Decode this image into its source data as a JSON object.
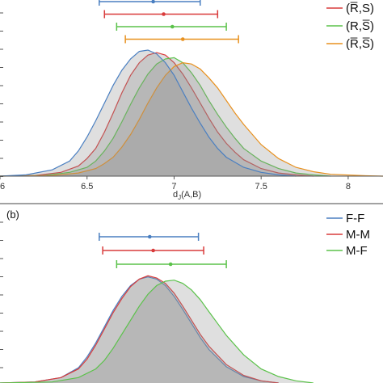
{
  "chart_data": [
    {
      "type": "area",
      "panel_label": "",
      "xlabel": "d_J(A,B)",
      "x_ticks": [
        "6",
        "6.5",
        "7",
        "7.5",
        "8"
      ],
      "xlim": [
        6.0,
        8.2
      ],
      "grid": false,
      "legend_position": "top-right",
      "series": [
        {
          "name": "(R̅,S)",
          "color": "#d93b3b",
          "interval": {
            "low": 6.6,
            "mean": 6.94,
            "high": 7.25
          },
          "density": [
            [
              6.0,
              0.0
            ],
            [
              6.2,
              0.005
            ],
            [
              6.35,
              0.03
            ],
            [
              6.45,
              0.08
            ],
            [
              6.5,
              0.14
            ],
            [
              6.55,
              0.22
            ],
            [
              6.6,
              0.35
            ],
            [
              6.65,
              0.5
            ],
            [
              6.7,
              0.66
            ],
            [
              6.75,
              0.8
            ],
            [
              6.8,
              0.9
            ],
            [
              6.85,
              0.96
            ],
            [
              6.9,
              0.98
            ],
            [
              6.95,
              0.96
            ],
            [
              7.0,
              0.9
            ],
            [
              7.05,
              0.81
            ],
            [
              7.1,
              0.7
            ],
            [
              7.15,
              0.58
            ],
            [
              7.2,
              0.46
            ],
            [
              7.25,
              0.35
            ],
            [
              7.3,
              0.26
            ],
            [
              7.35,
              0.19
            ],
            [
              7.4,
              0.13
            ],
            [
              7.5,
              0.06
            ],
            [
              7.6,
              0.025
            ],
            [
              7.7,
              0.01
            ],
            [
              7.8,
              0.0
            ]
          ]
        },
        {
          "name": "(R,S̅)",
          "color": "#5bc24a",
          "interval": {
            "low": 6.67,
            "mean": 6.99,
            "high": 7.3
          },
          "density": [
            [
              6.0,
              0.0
            ],
            [
              6.25,
              0.005
            ],
            [
              6.4,
              0.03
            ],
            [
              6.5,
              0.07
            ],
            [
              6.55,
              0.12
            ],
            [
              6.6,
              0.2
            ],
            [
              6.65,
              0.3
            ],
            [
              6.7,
              0.43
            ],
            [
              6.75,
              0.57
            ],
            [
              6.8,
              0.7
            ],
            [
              6.85,
              0.81
            ],
            [
              6.9,
              0.89
            ],
            [
              6.95,
              0.93
            ],
            [
              7.0,
              0.94
            ],
            [
              7.05,
              0.9
            ],
            [
              7.1,
              0.82
            ],
            [
              7.15,
              0.72
            ],
            [
              7.2,
              0.6
            ],
            [
              7.25,
              0.49
            ],
            [
              7.3,
              0.39
            ],
            [
              7.35,
              0.3
            ],
            [
              7.4,
              0.22
            ],
            [
              7.5,
              0.12
            ],
            [
              7.6,
              0.06
            ],
            [
              7.7,
              0.025
            ],
            [
              7.8,
              0.01
            ],
            [
              7.9,
              0.0
            ]
          ]
        },
        {
          "name": "(R̅,S̅)",
          "color": "#e8911f",
          "interval": {
            "low": 6.72,
            "mean": 7.05,
            "high": 7.37
          },
          "density": [
            [
              6.0,
              0.0
            ],
            [
              6.3,
              0.005
            ],
            [
              6.45,
              0.025
            ],
            [
              6.55,
              0.06
            ],
            [
              6.6,
              0.1
            ],
            [
              6.65,
              0.15
            ],
            [
              6.7,
              0.23
            ],
            [
              6.75,
              0.33
            ],
            [
              6.8,
              0.45
            ],
            [
              6.85,
              0.58
            ],
            [
              6.9,
              0.7
            ],
            [
              6.95,
              0.8
            ],
            [
              7.0,
              0.87
            ],
            [
              7.05,
              0.9
            ],
            [
              7.1,
              0.89
            ],
            [
              7.15,
              0.85
            ],
            [
              7.2,
              0.78
            ],
            [
              7.25,
              0.7
            ],
            [
              7.3,
              0.6
            ],
            [
              7.35,
              0.5
            ],
            [
              7.4,
              0.41
            ],
            [
              7.45,
              0.33
            ],
            [
              7.5,
              0.25
            ],
            [
              7.6,
              0.14
            ],
            [
              7.7,
              0.07
            ],
            [
              7.8,
              0.035
            ],
            [
              7.9,
              0.015
            ],
            [
              8.1,
              0.003
            ],
            [
              8.2,
              0.0
            ]
          ]
        },
        {
          "name": "",
          "color": "#4a7fc1",
          "interval": {
            "low": 6.57,
            "mean": 6.88,
            "high": 7.15
          },
          "density": [
            [
              6.0,
              0.0
            ],
            [
              6.15,
              0.01
            ],
            [
              6.3,
              0.05
            ],
            [
              6.4,
              0.12
            ],
            [
              6.45,
              0.2
            ],
            [
              6.5,
              0.31
            ],
            [
              6.55,
              0.44
            ],
            [
              6.6,
              0.58
            ],
            [
              6.65,
              0.72
            ],
            [
              6.7,
              0.84
            ],
            [
              6.75,
              0.93
            ],
            [
              6.8,
              0.99
            ],
            [
              6.85,
              1.0
            ],
            [
              6.9,
              0.97
            ],
            [
              6.95,
              0.9
            ],
            [
              7.0,
              0.8
            ],
            [
              7.05,
              0.67
            ],
            [
              7.1,
              0.54
            ],
            [
              7.15,
              0.42
            ],
            [
              7.2,
              0.31
            ],
            [
              7.25,
              0.22
            ],
            [
              7.3,
              0.15
            ],
            [
              7.4,
              0.07
            ],
            [
              7.5,
              0.03
            ],
            [
              7.6,
              0.01
            ],
            [
              7.7,
              0.0
            ]
          ]
        }
      ]
    },
    {
      "type": "area",
      "panel_label": "(b)",
      "xlabel": "",
      "xlim": [
        6.0,
        8.2
      ],
      "grid": false,
      "legend_position": "top-right",
      "series": [
        {
          "name": "F-F",
          "color": "#4a7fc1",
          "interval": {
            "low": 6.57,
            "mean": 6.86,
            "high": 7.14
          },
          "density": [
            [
              6.0,
              0.0
            ],
            [
              6.2,
              0.01
            ],
            [
              6.35,
              0.05
            ],
            [
              6.45,
              0.14
            ],
            [
              6.5,
              0.24
            ],
            [
              6.55,
              0.37
            ],
            [
              6.6,
              0.52
            ],
            [
              6.65,
              0.67
            ],
            [
              6.7,
              0.8
            ],
            [
              6.75,
              0.9
            ],
            [
              6.8,
              0.96
            ],
            [
              6.85,
              0.98
            ],
            [
              6.9,
              0.96
            ],
            [
              6.95,
              0.9
            ],
            [
              7.0,
              0.8
            ],
            [
              7.05,
              0.68
            ],
            [
              7.1,
              0.55
            ],
            [
              7.15,
              0.42
            ],
            [
              7.2,
              0.31
            ],
            [
              7.3,
              0.15
            ],
            [
              7.4,
              0.06
            ],
            [
              7.5,
              0.02
            ],
            [
              7.6,
              0.0
            ]
          ]
        },
        {
          "name": "M-M",
          "color": "#d93b3b",
          "interval": {
            "low": 6.59,
            "mean": 6.88,
            "high": 7.17
          },
          "density": [
            [
              6.0,
              0.0
            ],
            [
              6.2,
              0.01
            ],
            [
              6.35,
              0.05
            ],
            [
              6.45,
              0.13
            ],
            [
              6.5,
              0.22
            ],
            [
              6.55,
              0.35
            ],
            [
              6.6,
              0.5
            ],
            [
              6.65,
              0.65
            ],
            [
              6.7,
              0.78
            ],
            [
              6.75,
              0.89
            ],
            [
              6.8,
              0.96
            ],
            [
              6.85,
              0.99
            ],
            [
              6.9,
              0.97
            ],
            [
              6.95,
              0.92
            ],
            [
              7.0,
              0.83
            ],
            [
              7.05,
              0.71
            ],
            [
              7.1,
              0.58
            ],
            [
              7.15,
              0.45
            ],
            [
              7.2,
              0.34
            ],
            [
              7.3,
              0.17
            ],
            [
              7.4,
              0.07
            ],
            [
              7.5,
              0.02
            ],
            [
              7.6,
              0.0
            ]
          ]
        },
        {
          "name": "M-F",
          "color": "#5bc24a",
          "interval": {
            "low": 6.67,
            "mean": 6.98,
            "high": 7.3
          },
          "density": [
            [
              6.0,
              0.0
            ],
            [
              6.3,
              0.01
            ],
            [
              6.45,
              0.05
            ],
            [
              6.55,
              0.13
            ],
            [
              6.6,
              0.21
            ],
            [
              6.65,
              0.32
            ],
            [
              6.7,
              0.45
            ],
            [
              6.75,
              0.58
            ],
            [
              6.8,
              0.71
            ],
            [
              6.85,
              0.82
            ],
            [
              6.9,
              0.9
            ],
            [
              6.95,
              0.94
            ],
            [
              7.0,
              0.95
            ],
            [
              7.05,
              0.92
            ],
            [
              7.1,
              0.86
            ],
            [
              7.15,
              0.77
            ],
            [
              7.2,
              0.66
            ],
            [
              7.25,
              0.55
            ],
            [
              7.3,
              0.44
            ],
            [
              7.4,
              0.26
            ],
            [
              7.5,
              0.13
            ],
            [
              7.6,
              0.06
            ],
            [
              7.7,
              0.02
            ],
            [
              7.8,
              0.0
            ]
          ]
        }
      ]
    }
  ]
}
